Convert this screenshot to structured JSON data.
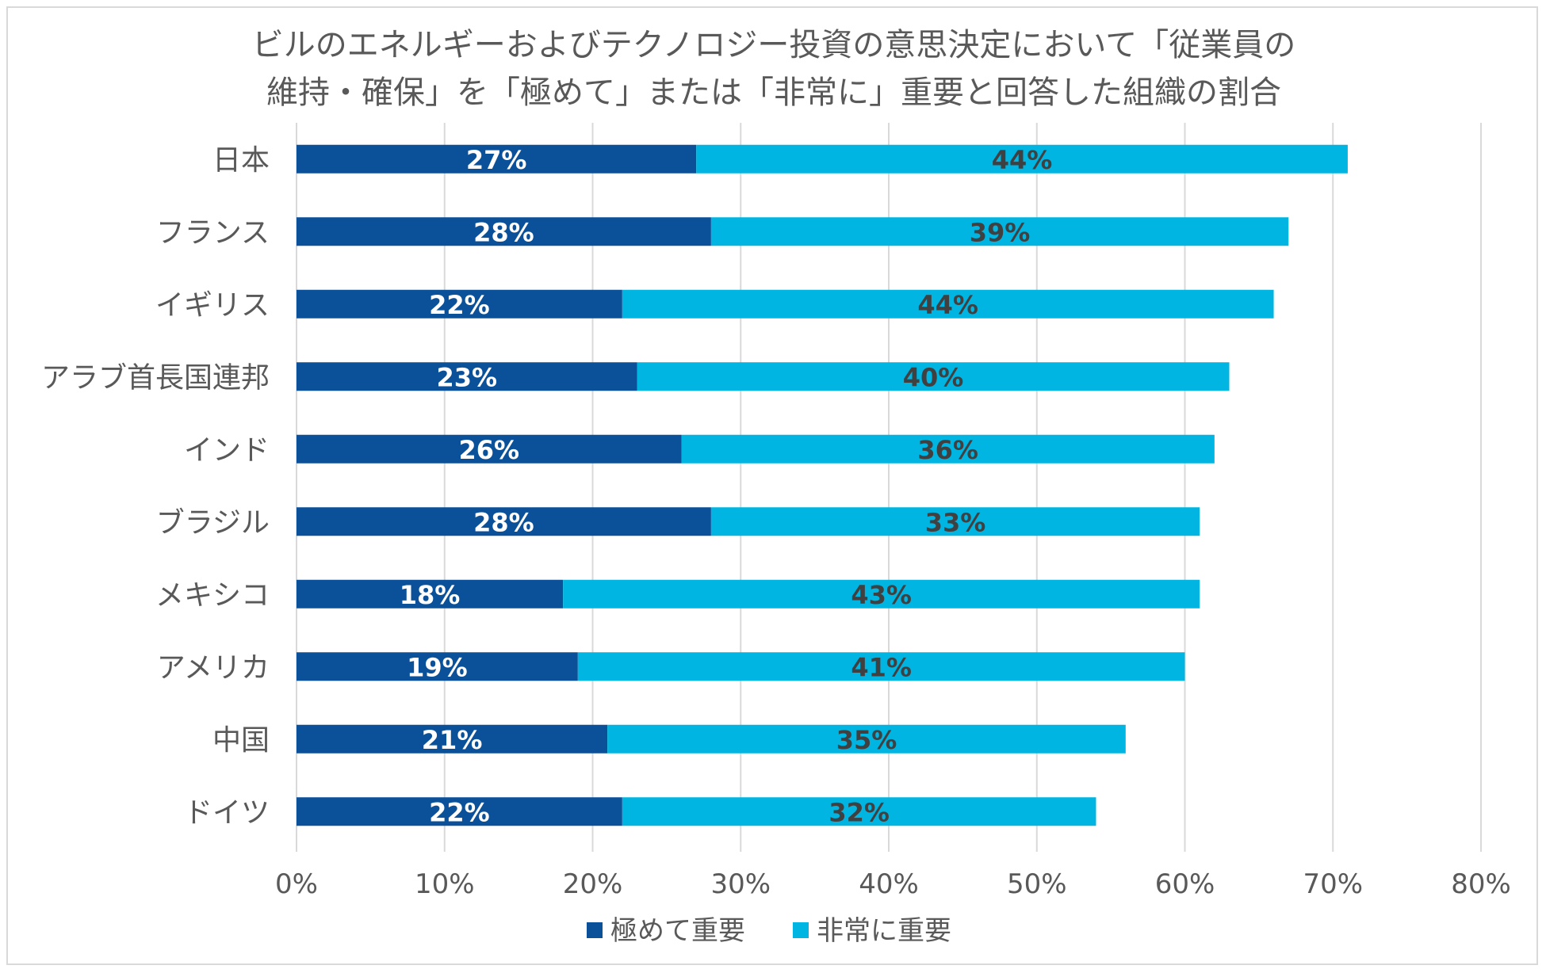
{
  "chart_data": {
    "type": "bar",
    "orientation": "horizontal",
    "stacked": true,
    "title": [
      "ビルのエネルギーおよびテクノロジー投資の意思決定において「従業員の",
      "維持・確保」を「極めて」または「非常に」重要と回答した組織の割合"
    ],
    "categories": [
      "日本",
      "フランス",
      "イギリス",
      "アラブ首長国連邦",
      "インド",
      "ブラジル",
      "メキシコ",
      "アメリカ",
      "中国",
      "ドイツ"
    ],
    "series": [
      {
        "name": "極めて重要",
        "color": "#0B5199",
        "values": [
          27,
          28,
          22,
          23,
          26,
          28,
          18,
          19,
          21,
          22
        ]
      },
      {
        "name": "非常に重要",
        "color": "#00B5E2",
        "values": [
          44,
          39,
          44,
          40,
          36,
          33,
          43,
          41,
          35,
          32
        ]
      }
    ],
    "xlim": [
      0,
      80
    ],
    "xticks": [
      0,
      10,
      20,
      30,
      40,
      50,
      60,
      70,
      80
    ],
    "xtick_labels": [
      "0%",
      "10%",
      "20%",
      "30%",
      "40%",
      "50%",
      "60%",
      "70%",
      "80%"
    ],
    "value_suffix": "%",
    "grid": true,
    "legend_position": "bottom-center"
  }
}
